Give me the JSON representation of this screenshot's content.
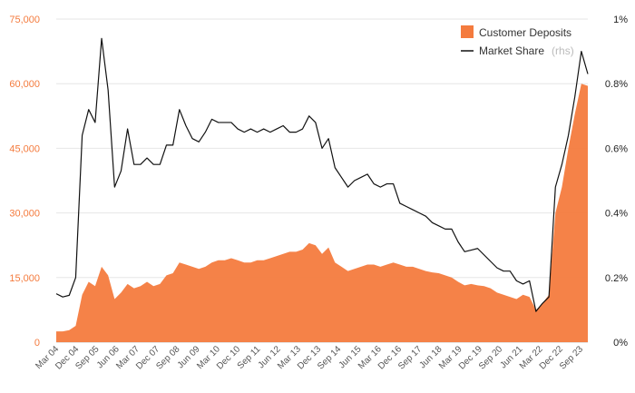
{
  "chart_data": {
    "type": "area",
    "title": "",
    "colors": {
      "deposits": "#f47b3e",
      "share": "#111111",
      "grid": "#e6e6e6",
      "left_axis_text": "#f47b3e"
    },
    "y_left": {
      "min": 0,
      "max": 75000,
      "ticks": [
        0,
        15000,
        30000,
        45000,
        60000,
        75000
      ],
      "tick_labels": [
        "0",
        "15,000",
        "30,000",
        "45,000",
        "60,000",
        "75,000"
      ]
    },
    "y_right": {
      "min": 0,
      "max": 1,
      "ticks": [
        0,
        0.2,
        0.4,
        0.6,
        0.8,
        1.0
      ],
      "tick_labels": [
        "0%",
        "0.2%",
        "0.4%",
        "0.6%",
        "0.8%",
        "1%"
      ]
    },
    "x_tick_labels": [
      "Mar 04",
      "Dec 04",
      "Sep 05",
      "Jun 06",
      "Mar 07",
      "Dec 07",
      "Sep 08",
      "Jun 09",
      "Mar 10",
      "Dec 10",
      "Sep 11",
      "Jun 12",
      "Mar 13",
      "Dec 13",
      "Sep 14",
      "Jun 15",
      "Mar 16",
      "Dec 16",
      "Sep 17",
      "Jun 18",
      "Mar 19",
      "Dec 19",
      "Sep 20",
      "Jun 21",
      "Mar 22",
      "Dec 22",
      "Sep 23"
    ],
    "legend": {
      "deposits_label": "Customer Deposits",
      "share_label": "Market Share",
      "share_suffix": "(rhs)",
      "position": "top-right"
    },
    "series": [
      {
        "name": "Customer Deposits",
        "type": "area",
        "axis": "left",
        "values": [
          2500,
          2500,
          2800,
          3800,
          11000,
          14000,
          13000,
          17500,
          15500,
          10000,
          11500,
          13500,
          12500,
          13000,
          14000,
          13000,
          13500,
          15500,
          16000,
          18500,
          18000,
          17500,
          17000,
          17500,
          18500,
          19000,
          19000,
          19500,
          19000,
          18500,
          18500,
          19000,
          19000,
          19500,
          20000,
          20500,
          21000,
          21000,
          21500,
          23000,
          22500,
          20500,
          22000,
          18500,
          17500,
          16500,
          17000,
          17500,
          18000,
          18000,
          17500,
          18000,
          18500,
          18000,
          17500,
          17500,
          17000,
          16500,
          16200,
          16000,
          15500,
          15000,
          14000,
          13200,
          13500,
          13200,
          13000,
          12500,
          11500,
          11000,
          10500,
          10000,
          11000,
          10500,
          7500,
          9000,
          11000,
          30000,
          36000,
          45000,
          53000,
          60000,
          59500
        ]
      },
      {
        "name": "Market Share",
        "type": "line",
        "axis": "right",
        "values": [
          0.15,
          0.14,
          0.145,
          0.2,
          0.64,
          0.72,
          0.68,
          0.94,
          0.78,
          0.48,
          0.53,
          0.66,
          0.55,
          0.55,
          0.57,
          0.55,
          0.55,
          0.61,
          0.61,
          0.72,
          0.67,
          0.63,
          0.62,
          0.65,
          0.69,
          0.68,
          0.68,
          0.68,
          0.66,
          0.65,
          0.66,
          0.65,
          0.66,
          0.65,
          0.66,
          0.67,
          0.65,
          0.65,
          0.66,
          0.7,
          0.68,
          0.6,
          0.63,
          0.54,
          0.51,
          0.48,
          0.5,
          0.51,
          0.52,
          0.49,
          0.48,
          0.49,
          0.49,
          0.43,
          0.42,
          0.41,
          0.4,
          0.39,
          0.37,
          0.36,
          0.35,
          0.35,
          0.31,
          0.28,
          0.285,
          0.29,
          0.27,
          0.25,
          0.23,
          0.22,
          0.22,
          0.19,
          0.18,
          0.19,
          0.095,
          0.12,
          0.14,
          0.48,
          0.55,
          0.64,
          0.76,
          0.9,
          0.83
        ]
      }
    ]
  }
}
